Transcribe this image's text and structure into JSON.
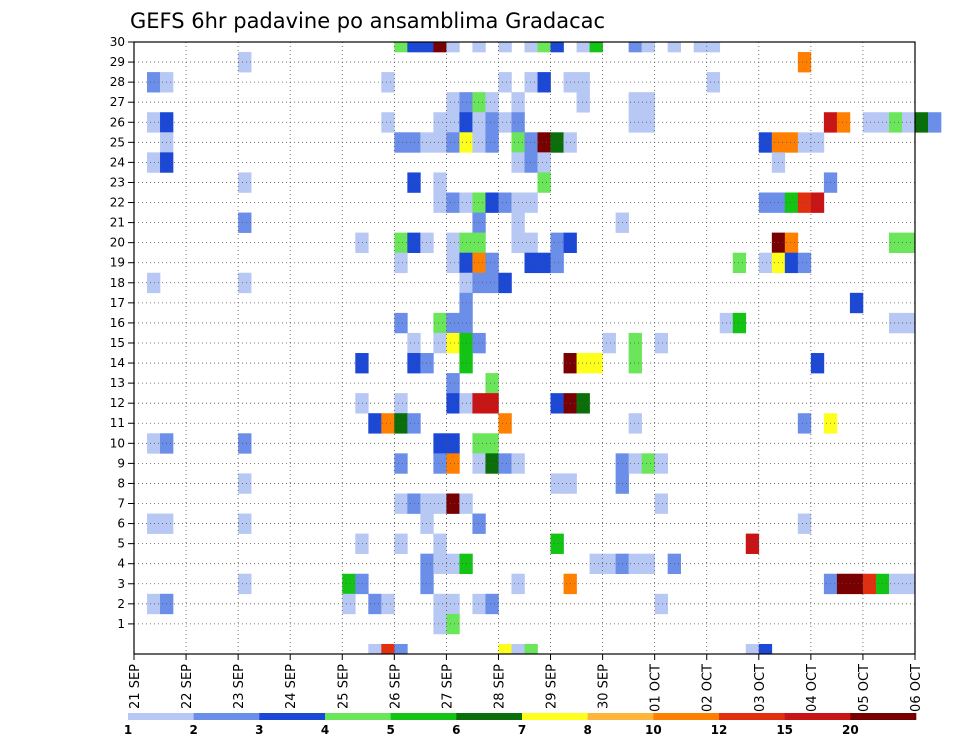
{
  "chart_data": {
    "type": "heatmap",
    "title": "GEFS 6hr padavine po ansamblima Gradacac",
    "y_members": [
      1,
      2,
      3,
      4,
      5,
      6,
      7,
      8,
      9,
      10,
      11,
      12,
      13,
      14,
      15,
      16,
      17,
      18,
      19,
      20,
      21,
      22,
      23,
      24,
      25,
      26,
      27,
      28,
      29,
      30
    ],
    "x_tick_labels": [
      "21 SEP",
      "22 SEP",
      "23 SEP",
      "24 SEP",
      "25 SEP",
      "26 SEP",
      "27 SEP",
      "28 SEP",
      "29 SEP",
      "30 SEP",
      "01 OCT",
      "02 OCT",
      "03 OCT",
      "04 OCT",
      "05 OCT",
      "06 OCT"
    ],
    "x_range_days": [
      0,
      15
    ],
    "steps_per_day": 4,
    "grid": true,
    "legend": {
      "placement": "bottom",
      "labels": [
        "1",
        "2",
        "3",
        "4",
        "5",
        "6",
        "7",
        "8",
        "10",
        "12",
        "15",
        "20"
      ],
      "colors": [
        "#b8c8f4",
        "#6b8ee8",
        "#1c48d6",
        "#6be65a",
        "#14c414",
        "#0a6e0a",
        "#ffff1e",
        "#ffb43c",
        "#ff8000",
        "#e03010",
        "#c81414",
        "#780000"
      ]
    },
    "cells": [
      {
        "m": 30,
        "t": 20,
        "v": 4
      },
      {
        "m": 30,
        "t": 21,
        "v": 3
      },
      {
        "m": 30,
        "t": 22,
        "v": 3
      },
      {
        "m": 30,
        "t": 23,
        "v": 20
      },
      {
        "m": 30,
        "t": 24,
        "v": 1
      },
      {
        "m": 30,
        "t": 26,
        "v": 1
      },
      {
        "m": 30,
        "t": 28,
        "v": 1
      },
      {
        "m": 30,
        "t": 30,
        "v": 1
      },
      {
        "m": 30,
        "t": 31,
        "v": 4
      },
      {
        "m": 30,
        "t": 32,
        "v": 3
      },
      {
        "m": 30,
        "t": 34,
        "v": 1
      },
      {
        "m": 30,
        "t": 35,
        "v": 5
      },
      {
        "m": 30,
        "t": 38,
        "v": 2
      },
      {
        "m": 30,
        "t": 39,
        "v": 1
      },
      {
        "m": 30,
        "t": 41,
        "v": 1
      },
      {
        "m": 30,
        "t": 43,
        "v": 1
      },
      {
        "m": 30,
        "t": 44,
        "v": 1
      },
      {
        "m": 29,
        "t": 8,
        "v": 1
      },
      {
        "m": 29,
        "t": 51,
        "v": 10
      },
      {
        "m": 28,
        "t": 1,
        "v": 2
      },
      {
        "m": 28,
        "t": 2,
        "v": 1
      },
      {
        "m": 28,
        "t": 19,
        "v": 1
      },
      {
        "m": 28,
        "t": 28,
        "v": 1
      },
      {
        "m": 28,
        "t": 30,
        "v": 1
      },
      {
        "m": 28,
        "t": 31,
        "v": 3
      },
      {
        "m": 28,
        "t": 33,
        "v": 1
      },
      {
        "m": 28,
        "t": 34,
        "v": 1
      },
      {
        "m": 28,
        "t": 44,
        "v": 1
      },
      {
        "m": 27,
        "t": 24,
        "v": 1
      },
      {
        "m": 27,
        "t": 25,
        "v": 2
      },
      {
        "m": 27,
        "t": 26,
        "v": 4
      },
      {
        "m": 27,
        "t": 27,
        "v": 1
      },
      {
        "m": 27,
        "t": 29,
        "v": 1
      },
      {
        "m": 27,
        "t": 34,
        "v": 1
      },
      {
        "m": 27,
        "t": 38,
        "v": 1
      },
      {
        "m": 27,
        "t": 39,
        "v": 1
      },
      {
        "m": 26,
        "t": 1,
        "v": 1
      },
      {
        "m": 26,
        "t": 2,
        "v": 3
      },
      {
        "m": 26,
        "t": 19,
        "v": 1
      },
      {
        "m": 26,
        "t": 23,
        "v": 1
      },
      {
        "m": 26,
        "t": 24,
        "v": 1
      },
      {
        "m": 26,
        "t": 25,
        "v": 3
      },
      {
        "m": 26,
        "t": 26,
        "v": 1
      },
      {
        "m": 26,
        "t": 27,
        "v": 2
      },
      {
        "m": 26,
        "t": 28,
        "v": 1
      },
      {
        "m": 26,
        "t": 29,
        "v": 2
      },
      {
        "m": 26,
        "t": 38,
        "v": 1
      },
      {
        "m": 26,
        "t": 39,
        "v": 1
      },
      {
        "m": 26,
        "t": 53,
        "v": 15
      },
      {
        "m": 26,
        "t": 54,
        "v": 10
      },
      {
        "m": 26,
        "t": 56,
        "v": 1
      },
      {
        "m": 26,
        "t": 57,
        "v": 1
      },
      {
        "m": 26,
        "t": 58,
        "v": 4
      },
      {
        "m": 26,
        "t": 59,
        "v": 1
      },
      {
        "m": 26,
        "t": 60,
        "v": 6
      },
      {
        "m": 26,
        "t": 61,
        "v": 2
      },
      {
        "m": 25,
        "t": 2,
        "v": 1
      },
      {
        "m": 25,
        "t": 20,
        "v": 2
      },
      {
        "m": 25,
        "t": 21,
        "v": 2
      },
      {
        "m": 25,
        "t": 22,
        "v": 1
      },
      {
        "m": 25,
        "t": 23,
        "v": 1
      },
      {
        "m": 25,
        "t": 24,
        "v": 2
      },
      {
        "m": 25,
        "t": 25,
        "v": 7
      },
      {
        "m": 25,
        "t": 26,
        "v": 1
      },
      {
        "m": 25,
        "t": 27,
        "v": 2
      },
      {
        "m": 25,
        "t": 29,
        "v": 4
      },
      {
        "m": 25,
        "t": 30,
        "v": 2
      },
      {
        "m": 25,
        "t": 31,
        "v": 20
      },
      {
        "m": 25,
        "t": 32,
        "v": 6
      },
      {
        "m": 25,
        "t": 33,
        "v": 1
      },
      {
        "m": 25,
        "t": 48,
        "v": 3
      },
      {
        "m": 25,
        "t": 49,
        "v": 10
      },
      {
        "m": 25,
        "t": 50,
        "v": 10
      },
      {
        "m": 25,
        "t": 51,
        "v": 1
      },
      {
        "m": 25,
        "t": 52,
        "v": 1
      },
      {
        "m": 24,
        "t": 1,
        "v": 1
      },
      {
        "m": 24,
        "t": 2,
        "v": 3
      },
      {
        "m": 24,
        "t": 29,
        "v": 1
      },
      {
        "m": 24,
        "t": 30,
        "v": 2
      },
      {
        "m": 24,
        "t": 31,
        "v": 1
      },
      {
        "m": 24,
        "t": 49,
        "v": 1
      },
      {
        "m": 23,
        "t": 8,
        "v": 1
      },
      {
        "m": 23,
        "t": 21,
        "v": 3
      },
      {
        "m": 23,
        "t": 23,
        "v": 1
      },
      {
        "m": 23,
        "t": 31,
        "v": 4
      },
      {
        "m": 23,
        "t": 53,
        "v": 2
      },
      {
        "m": 22,
        "t": 23,
        "v": 1
      },
      {
        "m": 22,
        "t": 24,
        "v": 2
      },
      {
        "m": 22,
        "t": 25,
        "v": 1
      },
      {
        "m": 22,
        "t": 26,
        "v": 4
      },
      {
        "m": 22,
        "t": 27,
        "v": 3
      },
      {
        "m": 22,
        "t": 28,
        "v": 2
      },
      {
        "m": 22,
        "t": 29,
        "v": 1
      },
      {
        "m": 22,
        "t": 30,
        "v": 1
      },
      {
        "m": 22,
        "t": 48,
        "v": 2
      },
      {
        "m": 22,
        "t": 49,
        "v": 2
      },
      {
        "m": 22,
        "t": 50,
        "v": 5
      },
      {
        "m": 22,
        "t": 51,
        "v": 12
      },
      {
        "m": 22,
        "t": 52,
        "v": 15
      },
      {
        "m": 21,
        "t": 8,
        "v": 2
      },
      {
        "m": 21,
        "t": 26,
        "v": 2
      },
      {
        "m": 21,
        "t": 29,
        "v": 1
      },
      {
        "m": 21,
        "t": 37,
        "v": 1
      },
      {
        "m": 20,
        "t": 17,
        "v": 1
      },
      {
        "m": 20,
        "t": 20,
        "v": 4
      },
      {
        "m": 20,
        "t": 21,
        "v": 3
      },
      {
        "m": 20,
        "t": 22,
        "v": 1
      },
      {
        "m": 20,
        "t": 24,
        "v": 1
      },
      {
        "m": 20,
        "t": 25,
        "v": 4
      },
      {
        "m": 20,
        "t": 26,
        "v": 4
      },
      {
        "m": 20,
        "t": 29,
        "v": 1
      },
      {
        "m": 20,
        "t": 30,
        "v": 1
      },
      {
        "m": 20,
        "t": 32,
        "v": 2
      },
      {
        "m": 20,
        "t": 33,
        "v": 3
      },
      {
        "m": 20,
        "t": 49,
        "v": 20
      },
      {
        "m": 20,
        "t": 50,
        "v": 10
      },
      {
        "m": 20,
        "t": 58,
        "v": 4
      },
      {
        "m": 20,
        "t": 59,
        "v": 4
      },
      {
        "m": 19,
        "t": 20,
        "v": 1
      },
      {
        "m": 19,
        "t": 24,
        "v": 1
      },
      {
        "m": 19,
        "t": 25,
        "v": 3
      },
      {
        "m": 19,
        "t": 26,
        "v": 10
      },
      {
        "m": 19,
        "t": 27,
        "v": 2
      },
      {
        "m": 19,
        "t": 30,
        "v": 3
      },
      {
        "m": 19,
        "t": 31,
        "v": 3
      },
      {
        "m": 19,
        "t": 32,
        "v": 2
      },
      {
        "m": 19,
        "t": 46,
        "v": 4
      },
      {
        "m": 19,
        "t": 48,
        "v": 1
      },
      {
        "m": 19,
        "t": 49,
        "v": 7
      },
      {
        "m": 19,
        "t": 50,
        "v": 3
      },
      {
        "m": 19,
        "t": 51,
        "v": 2
      },
      {
        "m": 18,
        "t": 1,
        "v": 1
      },
      {
        "m": 18,
        "t": 8,
        "v": 1
      },
      {
        "m": 18,
        "t": 25,
        "v": 1
      },
      {
        "m": 18,
        "t": 26,
        "v": 2
      },
      {
        "m": 18,
        "t": 27,
        "v": 2
      },
      {
        "m": 18,
        "t": 28,
        "v": 3
      },
      {
        "m": 17,
        "t": 25,
        "v": 2
      },
      {
        "m": 17,
        "t": 55,
        "v": 3
      },
      {
        "m": 16,
        "t": 20,
        "v": 2
      },
      {
        "m": 16,
        "t": 23,
        "v": 4
      },
      {
        "m": 16,
        "t": 24,
        "v": 2
      },
      {
        "m": 16,
        "t": 25,
        "v": 2
      },
      {
        "m": 16,
        "t": 45,
        "v": 1
      },
      {
        "m": 16,
        "t": 46,
        "v": 5
      },
      {
        "m": 16,
        "t": 58,
        "v": 1
      },
      {
        "m": 16,
        "t": 59,
        "v": 1
      },
      {
        "m": 15,
        "t": 21,
        "v": 1
      },
      {
        "m": 15,
        "t": 23,
        "v": 1
      },
      {
        "m": 15,
        "t": 24,
        "v": 7
      },
      {
        "m": 15,
        "t": 25,
        "v": 5
      },
      {
        "m": 15,
        "t": 26,
        "v": 2
      },
      {
        "m": 15,
        "t": 36,
        "v": 1
      },
      {
        "m": 15,
        "t": 38,
        "v": 4
      },
      {
        "m": 15,
        "t": 40,
        "v": 1
      },
      {
        "m": 14,
        "t": 17,
        "v": 3
      },
      {
        "m": 14,
        "t": 21,
        "v": 3
      },
      {
        "m": 14,
        "t": 22,
        "v": 2
      },
      {
        "m": 14,
        "t": 25,
        "v": 5
      },
      {
        "m": 14,
        "t": 33,
        "v": 20
      },
      {
        "m": 14,
        "t": 34,
        "v": 7
      },
      {
        "m": 14,
        "t": 35,
        "v": 7
      },
      {
        "m": 14,
        "t": 38,
        "v": 4
      },
      {
        "m": 14,
        "t": 52,
        "v": 3
      },
      {
        "m": 13,
        "t": 24,
        "v": 2
      },
      {
        "m": 13,
        "t": 27,
        "v": 4
      },
      {
        "m": 12,
        "t": 17,
        "v": 1
      },
      {
        "m": 12,
        "t": 20,
        "v": 1
      },
      {
        "m": 12,
        "t": 24,
        "v": 3
      },
      {
        "m": 12,
        "t": 25,
        "v": 1
      },
      {
        "m": 12,
        "t": 26,
        "v": 15
      },
      {
        "m": 12,
        "t": 27,
        "v": 15
      },
      {
        "m": 12,
        "t": 32,
        "v": 3
      },
      {
        "m": 12,
        "t": 33,
        "v": 20
      },
      {
        "m": 12,
        "t": 34,
        "v": 6
      },
      {
        "m": 11,
        "t": 18,
        "v": 3
      },
      {
        "m": 11,
        "t": 19,
        "v": 10
      },
      {
        "m": 11,
        "t": 20,
        "v": 6
      },
      {
        "m": 11,
        "t": 21,
        "v": 2
      },
      {
        "m": 11,
        "t": 28,
        "v": 10
      },
      {
        "m": 11,
        "t": 38,
        "v": 1
      },
      {
        "m": 11,
        "t": 51,
        "v": 2
      },
      {
        "m": 11,
        "t": 53,
        "v": 7
      },
      {
        "m": 10,
        "t": 1,
        "v": 1
      },
      {
        "m": 10,
        "t": 2,
        "v": 2
      },
      {
        "m": 10,
        "t": 8,
        "v": 2
      },
      {
        "m": 10,
        "t": 23,
        "v": 3
      },
      {
        "m": 10,
        "t": 24,
        "v": 3
      },
      {
        "m": 10,
        "t": 26,
        "v": 4
      },
      {
        "m": 10,
        "t": 27,
        "v": 4
      },
      {
        "m": 9,
        "t": 20,
        "v": 2
      },
      {
        "m": 9,
        "t": 23,
        "v": 2
      },
      {
        "m": 9,
        "t": 24,
        "v": 10
      },
      {
        "m": 9,
        "t": 26,
        "v": 1
      },
      {
        "m": 9,
        "t": 27,
        "v": 6
      },
      {
        "m": 9,
        "t": 28,
        "v": 2
      },
      {
        "m": 9,
        "t": 29,
        "v": 1
      },
      {
        "m": 9,
        "t": 37,
        "v": 2
      },
      {
        "m": 9,
        "t": 38,
        "v": 1
      },
      {
        "m": 9,
        "t": 39,
        "v": 4
      },
      {
        "m": 9,
        "t": 40,
        "v": 1
      },
      {
        "m": 8,
        "t": 8,
        "v": 1
      },
      {
        "m": 8,
        "t": 32,
        "v": 1
      },
      {
        "m": 8,
        "t": 33,
        "v": 1
      },
      {
        "m": 8,
        "t": 37,
        "v": 2
      },
      {
        "m": 7,
        "t": 20,
        "v": 1
      },
      {
        "m": 7,
        "t": 21,
        "v": 2
      },
      {
        "m": 7,
        "t": 22,
        "v": 1
      },
      {
        "m": 7,
        "t": 23,
        "v": 1
      },
      {
        "m": 7,
        "t": 24,
        "v": 20
      },
      {
        "m": 7,
        "t": 25,
        "v": 1
      },
      {
        "m": 7,
        "t": 40,
        "v": 1
      },
      {
        "m": 6,
        "t": 1,
        "v": 1
      },
      {
        "m": 6,
        "t": 2,
        "v": 1
      },
      {
        "m": 6,
        "t": 8,
        "v": 1
      },
      {
        "m": 6,
        "t": 22,
        "v": 1
      },
      {
        "m": 6,
        "t": 26,
        "v": 2
      },
      {
        "m": 6,
        "t": 51,
        "v": 1
      },
      {
        "m": 5,
        "t": 17,
        "v": 1
      },
      {
        "m": 5,
        "t": 20,
        "v": 1
      },
      {
        "m": 5,
        "t": 23,
        "v": 1
      },
      {
        "m": 5,
        "t": 32,
        "v": 5
      },
      {
        "m": 5,
        "t": 47,
        "v": 15
      },
      {
        "m": 4,
        "t": 22,
        "v": 2
      },
      {
        "m": 4,
        "t": 23,
        "v": 1
      },
      {
        "m": 4,
        "t": 24,
        "v": 1
      },
      {
        "m": 4,
        "t": 25,
        "v": 5
      },
      {
        "m": 4,
        "t": 35,
        "v": 1
      },
      {
        "m": 4,
        "t": 36,
        "v": 1
      },
      {
        "m": 4,
        "t": 37,
        "v": 2
      },
      {
        "m": 4,
        "t": 38,
        "v": 1
      },
      {
        "m": 4,
        "t": 39,
        "v": 1
      },
      {
        "m": 4,
        "t": 41,
        "v": 2
      },
      {
        "m": 3,
        "t": 8,
        "v": 1
      },
      {
        "m": 3,
        "t": 16,
        "v": 5
      },
      {
        "m": 3,
        "t": 17,
        "v": 2
      },
      {
        "m": 3,
        "t": 22,
        "v": 2
      },
      {
        "m": 3,
        "t": 29,
        "v": 1
      },
      {
        "m": 3,
        "t": 33,
        "v": 10
      },
      {
        "m": 3,
        "t": 53,
        "v": 2
      },
      {
        "m": 3,
        "t": 54,
        "v": 20
      },
      {
        "m": 3,
        "t": 55,
        "v": 20
      },
      {
        "m": 3,
        "t": 56,
        "v": 12
      },
      {
        "m": 3,
        "t": 57,
        "v": 5
      },
      {
        "m": 3,
        "t": 58,
        "v": 1
      },
      {
        "m": 3,
        "t": 59,
        "v": 1
      },
      {
        "m": 2,
        "t": 1,
        "v": 1
      },
      {
        "m": 2,
        "t": 2,
        "v": 2
      },
      {
        "m": 2,
        "t": 16,
        "v": 1
      },
      {
        "m": 2,
        "t": 18,
        "v": 2
      },
      {
        "m": 2,
        "t": 19,
        "v": 1
      },
      {
        "m": 2,
        "t": 23,
        "v": 1
      },
      {
        "m": 2,
        "t": 24,
        "v": 1
      },
      {
        "m": 2,
        "t": 26,
        "v": 1
      },
      {
        "m": 2,
        "t": 27,
        "v": 2
      },
      {
        "m": 2,
        "t": 40,
        "v": 1
      },
      {
        "m": 1,
        "t": 23,
        "v": 1
      },
      {
        "m": 1,
        "t": 24,
        "v": 4
      },
      {
        "m": 0,
        "t": 18,
        "v": 1
      },
      {
        "m": 0,
        "t": 19,
        "v": 12
      },
      {
        "m": 0,
        "t": 20,
        "v": 2
      },
      {
        "m": 0,
        "t": 28,
        "v": 7
      },
      {
        "m": 0,
        "t": 29,
        "v": 1
      },
      {
        "m": 0,
        "t": 30,
        "v": 4
      },
      {
        "m": 0,
        "t": 47,
        "v": 1
      },
      {
        "m": 0,
        "t": 48,
        "v": 3
      }
    ]
  }
}
